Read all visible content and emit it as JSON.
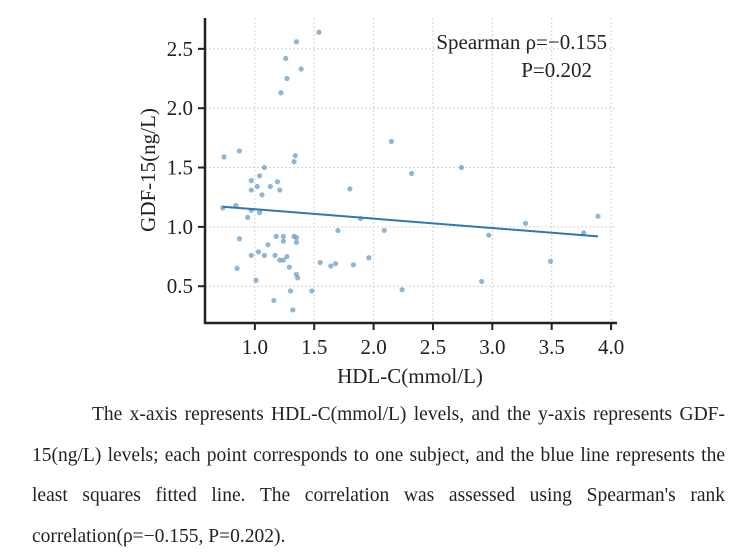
{
  "chart_data": {
    "type": "scatter",
    "xlabel": "HDL-C(mmol/L)",
    "ylabel": "GDF-15(ng/L)",
    "xlim": [
      0.58,
      4.05
    ],
    "ylim": [
      0.19,
      2.76
    ],
    "xticks": [
      "1.0",
      "1.5",
      "2.0",
      "2.5",
      "3.0",
      "3.5",
      "4.0"
    ],
    "yticks": [
      "0.5",
      "1.0",
      "1.5",
      "2.0",
      "2.5"
    ],
    "grid": true,
    "annotation": {
      "line1": "Spearman ρ=−0.155",
      "line2": "P=0.202"
    },
    "point_color": "#6a9ec6",
    "line_color": "#2e78b0",
    "points": [
      [
        1.54,
        2.64
      ],
      [
        1.35,
        2.56
      ],
      [
        1.26,
        2.42
      ],
      [
        1.39,
        2.33
      ],
      [
        1.27,
        2.25
      ],
      [
        1.22,
        2.13
      ],
      [
        2.15,
        1.72
      ],
      [
        0.87,
        1.64
      ],
      [
        0.74,
        1.59
      ],
      [
        1.34,
        1.6
      ],
      [
        1.33,
        1.55
      ],
      [
        1.08,
        1.5
      ],
      [
        2.74,
        1.5
      ],
      [
        2.32,
        1.45
      ],
      [
        1.04,
        1.43
      ],
      [
        0.97,
        1.39
      ],
      [
        1.19,
        1.38
      ],
      [
        1.02,
        1.34
      ],
      [
        1.13,
        1.34
      ],
      [
        0.97,
        1.31
      ],
      [
        1.21,
        1.31
      ],
      [
        1.8,
        1.32
      ],
      [
        1.06,
        1.27
      ],
      [
        0.84,
        1.18
      ],
      [
        0.73,
        1.16
      ],
      [
        0.97,
        1.14
      ],
      [
        1.04,
        1.12
      ],
      [
        0.94,
        1.08
      ],
      [
        1.89,
        1.07
      ],
      [
        3.89,
        1.09
      ],
      [
        3.28,
        1.03
      ],
      [
        1.7,
        0.97
      ],
      [
        2.09,
        0.97
      ],
      [
        3.77,
        0.95
      ],
      [
        2.97,
        0.93
      ],
      [
        0.87,
        0.9
      ],
      [
        1.18,
        0.92
      ],
      [
        1.24,
        0.92
      ],
      [
        1.24,
        0.88
      ],
      [
        1.33,
        0.92
      ],
      [
        1.35,
        0.91
      ],
      [
        1.35,
        0.87
      ],
      [
        1.11,
        0.85
      ],
      [
        1.03,
        0.79
      ],
      [
        0.97,
        0.76
      ],
      [
        1.08,
        0.76
      ],
      [
        1.17,
        0.76
      ],
      [
        1.27,
        0.75
      ],
      [
        1.21,
        0.72
      ],
      [
        1.24,
        0.72
      ],
      [
        1.96,
        0.74
      ],
      [
        3.49,
        0.71
      ],
      [
        1.55,
        0.7
      ],
      [
        1.68,
        0.69
      ],
      [
        1.83,
        0.68
      ],
      [
        1.64,
        0.67
      ],
      [
        1.29,
        0.66
      ],
      [
        0.85,
        0.65
      ],
      [
        1.35,
        0.6
      ],
      [
        1.36,
        0.57
      ],
      [
        1.01,
        0.55
      ],
      [
        2.91,
        0.54
      ],
      [
        2.24,
        0.47
      ],
      [
        1.3,
        0.46
      ],
      [
        1.48,
        0.46
      ],
      [
        1.16,
        0.38
      ],
      [
        1.32,
        0.3
      ]
    ],
    "fit_line": {
      "x": [
        0.73,
        3.89
      ],
      "y": [
        1.17,
        0.92
      ]
    }
  },
  "caption": {
    "line": "The x-axis represents HDL-C(mmol/L) levels, and the y-axis represents GDF-15(ng/L) levels; each point corresponds to one subject, and the blue line represents the least squares fitted line. The correlation was assessed using Spearman's rank correlation(ρ=−0.155, P=0.202)."
  }
}
